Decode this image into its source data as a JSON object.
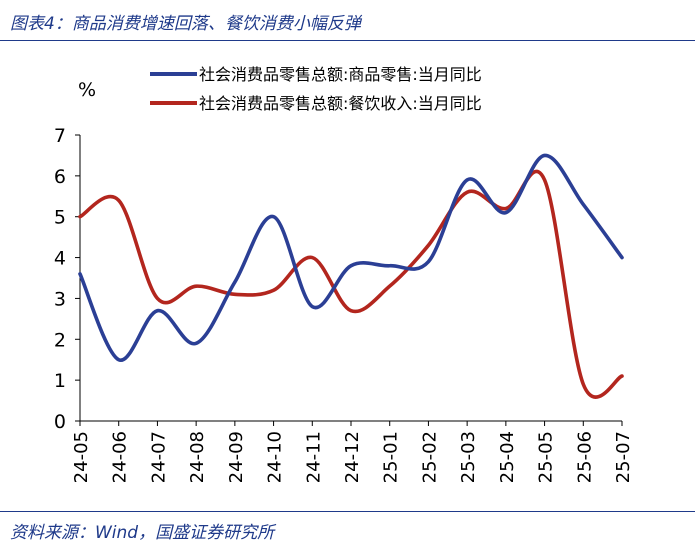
{
  "header": {
    "title": "图表4：商品消费增速回落、餐饮消费小幅反弹"
  },
  "footer": {
    "source": "资料来源：Wind，国盛证券研究所"
  },
  "chart_data": {
    "type": "line",
    "ylabel": "%",
    "ylim": [
      0,
      7
    ],
    "yticks": [
      0,
      1,
      2,
      3,
      4,
      5,
      6,
      7
    ],
    "grid": false,
    "legend_position": "top",
    "x": [
      "24-05",
      "24-06",
      "24-07",
      "24-08",
      "24-09",
      "24-10",
      "24-11",
      "24-12",
      "25-01",
      "25-02",
      "25-03",
      "25-04",
      "25-05",
      "25-06",
      "25-07"
    ],
    "series": [
      {
        "name": "社会消费品零售总额:商品零售:当月同比",
        "color": "#2b3f95",
        "values": [
          3.6,
          1.5,
          2.7,
          1.9,
          3.4,
          5.0,
          2.8,
          3.8,
          3.8,
          3.9,
          5.9,
          5.1,
          6.5,
          5.3,
          4.0
        ]
      },
      {
        "name": "社会消费品零售总额:餐饮收入:当月同比",
        "color": "#b3261e",
        "values": [
          5.0,
          5.4,
          3.0,
          3.3,
          3.1,
          3.2,
          4.0,
          2.7,
          3.3,
          4.3,
          5.6,
          5.2,
          5.9,
          0.9,
          1.1
        ]
      }
    ]
  }
}
